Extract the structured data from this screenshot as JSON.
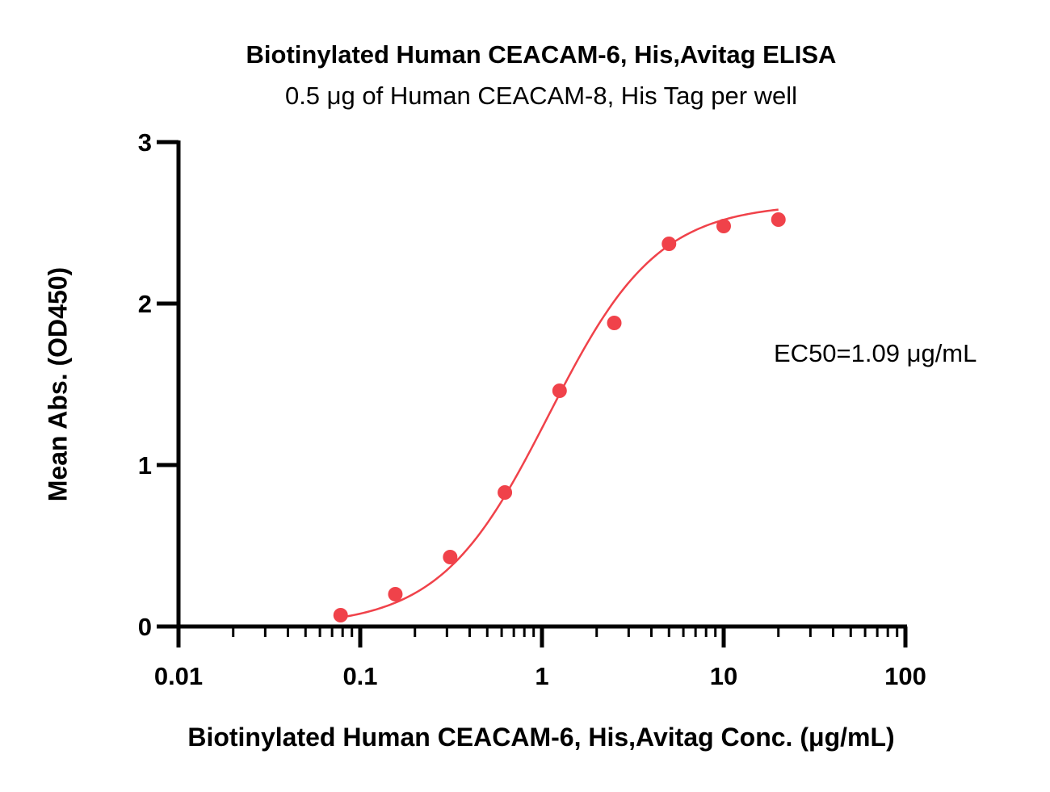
{
  "chart_data": {
    "type": "scatter",
    "title": "Biotinylated Human CEACAM-6, His,Avitag ELISA",
    "subtitle": "0.5 μg of Human CEACAM-8, His Tag per well",
    "xlabel": "Biotinylated Human CEACAM-6, His,Avitag Conc. (μg/mL)",
    "ylabel": "Mean Abs. (OD450)",
    "xscale": "log",
    "xlim": [
      0.01,
      100
    ],
    "ylim": [
      0,
      3
    ],
    "x_ticks": [
      "0.01",
      "0.1",
      "1",
      "10",
      "100"
    ],
    "y_ticks": [
      "0",
      "1",
      "2",
      "3"
    ],
    "grid": false,
    "annotation": "EC50=1.09 μg/mL",
    "color": "#f0424a",
    "series": [
      {
        "x": [
          0.078,
          0.156,
          0.3125,
          0.625,
          1.25,
          2.5,
          5,
          10,
          20
        ],
        "y": [
          0.07,
          0.2,
          0.43,
          0.83,
          1.46,
          1.88,
          2.37,
          2.48,
          2.52
        ],
        "fit": "4PL sigmoid"
      }
    ]
  }
}
